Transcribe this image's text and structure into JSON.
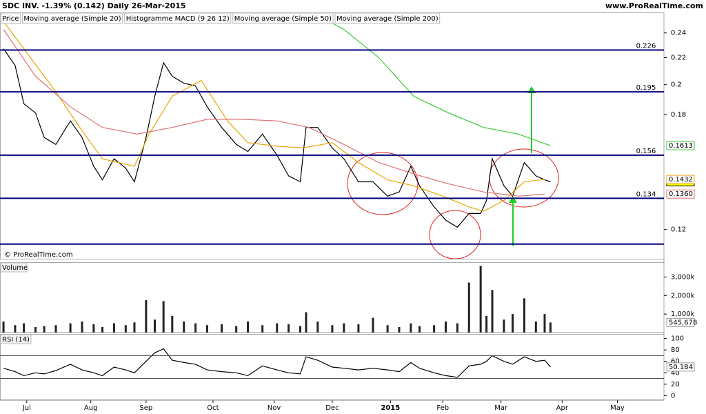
{
  "chart_data": {
    "type": "financial",
    "title": "SDC INV.  -1.39% (0.142)  Daily  26-Mar-2015",
    "source": "www.ProRealTime.com",
    "watermark": "© ProRealTime.com",
    "indicator": "Histogramme MACD (9 26 12)",
    "xlim": [
      -1.2,
      227
    ],
    "xticks": [
      {
        "value": 8,
        "label": "Jul"
      },
      {
        "value": 30,
        "label": "Aug"
      },
      {
        "value": 49,
        "label": "Sep"
      },
      {
        "value": 72,
        "label": "Oct"
      },
      {
        "value": 93,
        "label": "Nov"
      },
      {
        "value": 113,
        "label": "Dec"
      },
      {
        "value": 133,
        "label": "2015"
      },
      {
        "value": 151,
        "label": "Feb"
      },
      {
        "value": 171,
        "label": "Mar"
      },
      {
        "value": 192,
        "label": "Apr"
      },
      {
        "value": 211,
        "label": "May"
      }
    ],
    "panels": [
      {
        "type": "line",
        "log_scale": true,
        "ylim": [
          0.108,
          0.258
        ],
        "yticks": [
          0.12,
          0.18,
          0.2,
          0.22,
          0.24
        ],
        "levels": [
          0.226,
          0.195,
          0.156,
          0.134
        ],
        "floor_level": 0.114,
        "series": [
          {
            "name": "Price",
            "color": "#000000",
            "x": [
              0,
              4,
              7,
              11,
              14,
              18,
              23,
              27,
              31,
              34,
              38,
              42,
              45,
              49,
              52,
              55,
              58,
              62,
              66,
              70,
              75,
              80,
              84,
              89,
              94,
              98,
              102,
              104,
              108,
              113,
              117,
              122,
              127,
              132,
              136,
              140,
              143,
              148,
              152,
              156,
              160,
              164,
              166,
              168,
              172,
              175,
              179,
              183,
              186,
              188
            ],
            "values": [
              0.227,
              0.214,
              0.187,
              0.181,
              0.166,
              0.162,
              0.176,
              0.166,
              0.15,
              0.143,
              0.154,
              0.149,
              0.142,
              0.166,
              0.192,
              0.216,
              0.206,
              0.201,
              0.199,
              0.185,
              0.172,
              0.162,
              0.158,
              0.168,
              0.156,
              0.145,
              0.142,
              0.172,
              0.172,
              0.16,
              0.154,
              0.142,
              0.142,
              0.135,
              0.137,
              0.15,
              0.14,
              0.13,
              0.124,
              0.121,
              0.127,
              0.127,
              0.133,
              0.154,
              0.14,
              0.135,
              0.152,
              0.145,
              0.143,
              0.142
            ]
          },
          {
            "name": "Moving average (Simple 20)",
            "color": "#e8a800",
            "x": [
              0,
              7,
              18,
              27,
              34,
              45,
              50,
              58,
              68,
              77,
              84,
              94,
              103,
              113,
              122,
              132,
              141,
              151,
              160,
              165,
              172,
              179,
              186
            ],
            "values": [
              0.25,
              0.227,
              0.195,
              0.17,
              0.154,
              0.15,
              0.168,
              0.192,
              0.203,
              0.176,
              0.163,
              0.161,
              0.16,
              0.163,
              0.152,
              0.143,
              0.14,
              0.135,
              0.13,
              0.128,
              0.133,
              0.142,
              0.1432
            ]
          },
          {
            "name": "Moving average (Simple 50)",
            "color": "#e07070",
            "x": [
              0,
              11,
              23,
              34,
              46,
              58,
              70,
              82,
              94,
              105,
              117,
              129,
              141,
              153,
              165,
              177,
              186
            ],
            "values": [
              0.243,
              0.206,
              0.185,
              0.172,
              0.168,
              0.172,
              0.177,
              0.177,
              0.176,
              0.172,
              0.162,
              0.152,
              0.146,
              0.141,
              0.137,
              0.135,
              0.136
            ],
            "last_label": "0.1360"
          },
          {
            "name": "Moving average (Simple 200)",
            "color": "#33cc33",
            "x": [
              107,
              117,
              129,
              141,
              153,
              165,
              177,
              188
            ],
            "values": [
              0.257,
              0.243,
              0.22,
              0.192,
              0.181,
              0.172,
              0.168,
              0.1613
            ]
          }
        ]
      },
      {
        "type": "bar",
        "label": "Volume",
        "ylim": [
          0,
          3800000
        ],
        "yticks": [
          {
            "value": 1000000,
            "label": "1,000k"
          },
          {
            "value": 2000000,
            "label": "2,000k"
          },
          {
            "value": 3000000,
            "label": "3,000k"
          }
        ],
        "series": [
          {
            "color": "#222222",
            "x": [
              0,
              4,
              7,
              11,
              14,
              18,
              23,
              27,
              31,
              34,
              38,
              42,
              45,
              49,
              52,
              55,
              58,
              62,
              66,
              70,
              75,
              80,
              84,
              89,
              94,
              98,
              102,
              104,
              108,
              113,
              117,
              122,
              127,
              132,
              136,
              140,
              143,
              148,
              152,
              156,
              160,
              164,
              166,
              168,
              172,
              175,
              179,
              183,
              186,
              188
            ],
            "values": [
              600000,
              400000,
              500000,
              300000,
              350000,
              400000,
              500000,
              600000,
              450000,
              300000,
              500000,
              400000,
              550000,
              1750000,
              700000,
              1700000,
              900000,
              600000,
              500000,
              400000,
              450000,
              350000,
              600000,
              400000,
              500000,
              450000,
              350000,
              1100000,
              600000,
              400000,
              500000,
              450000,
              800000,
              400000,
              300000,
              500000,
              350000,
              400000,
              600000,
              500000,
              2700000,
              3600000,
              900000,
              2300000,
              700000,
              1000000,
              1850000,
              600000,
              1000000,
              545678
            ],
            "last_label": "545,678"
          }
        ]
      },
      {
        "type": "line",
        "label": "RSI (14)",
        "ylim": [
          -8,
          108
        ],
        "yticks": [
          0,
          20,
          40,
          60,
          80,
          100
        ],
        "levels_plain": [
          70,
          30
        ],
        "series": [
          {
            "color": "#000000",
            "x": [
              0,
              4,
              7,
              11,
              14,
              18,
              23,
              27,
              31,
              34,
              38,
              42,
              45,
              49,
              52,
              55,
              58,
              62,
              66,
              70,
              75,
              80,
              84,
              89,
              94,
              98,
              102,
              104,
              108,
              113,
              117,
              122,
              127,
              132,
              136,
              140,
              143,
              148,
              152,
              156,
              160,
              164,
              166,
              168,
              172,
              175,
              179,
              183,
              186,
              188
            ],
            "values": [
              48,
              42,
              35,
              40,
              38,
              44,
              55,
              45,
              40,
              35,
              50,
              45,
              40,
              60,
              75,
              82,
              62,
              58,
              55,
              45,
              42,
              40,
              35,
              52,
              45,
              40,
              38,
              68,
              62,
              50,
              48,
              45,
              48,
              45,
              42,
              58,
              48,
              40,
              35,
              32,
              52,
              55,
              60,
              70,
              60,
              55,
              68,
              60,
              62,
              50.184
            ]
          }
        ]
      }
    ]
  }
}
